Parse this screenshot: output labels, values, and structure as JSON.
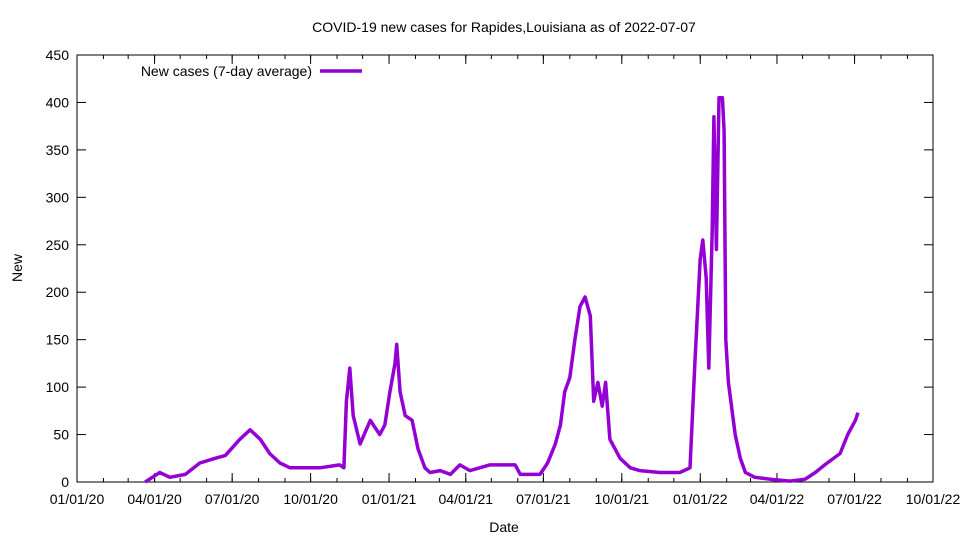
{
  "chart_data": {
    "type": "line",
    "title": "COVID-19 new cases for Rapides,Louisiana as of 2022-07-07",
    "xlabel": "Date",
    "ylabel": "New",
    "ylim": [
      0,
      450
    ],
    "yticks": [
      0,
      50,
      100,
      150,
      200,
      250,
      300,
      350,
      400,
      450
    ],
    "xlim": [
      "2020-01-01",
      "2022-10-01"
    ],
    "xticks": [
      {
        "date": "2020-01-01",
        "label": "01/01/20"
      },
      {
        "date": "2020-04-01",
        "label": "04/01/20"
      },
      {
        "date": "2020-07-01",
        "label": "07/01/20"
      },
      {
        "date": "2020-10-01",
        "label": "10/01/20"
      },
      {
        "date": "2021-01-01",
        "label": "01/01/21"
      },
      {
        "date": "2021-04-01",
        "label": "04/01/21"
      },
      {
        "date": "2021-07-01",
        "label": "07/01/21"
      },
      {
        "date": "2021-10-01",
        "label": "10/01/21"
      },
      {
        "date": "2022-01-01",
        "label": "01/01/22"
      },
      {
        "date": "2022-04-01",
        "label": "04/01/22"
      },
      {
        "date": "2022-07-01",
        "label": "07/01/22"
      },
      {
        "date": "2022-10-01",
        "label": "10/01/22"
      }
    ],
    "grid": false,
    "legend_position": "top-left",
    "series": [
      {
        "name": "New cases (7-day average)",
        "color": "#9400D3",
        "points": [
          [
            "2020-03-21",
            0
          ],
          [
            "2020-04-07",
            10
          ],
          [
            "2020-04-19",
            5
          ],
          [
            "2020-05-07",
            8
          ],
          [
            "2020-05-24",
            20
          ],
          [
            "2020-06-11",
            25
          ],
          [
            "2020-06-23",
            28
          ],
          [
            "2020-07-10",
            45
          ],
          [
            "2020-07-22",
            55
          ],
          [
            "2020-08-03",
            45
          ],
          [
            "2020-08-14",
            30
          ],
          [
            "2020-08-26",
            20
          ],
          [
            "2020-09-07",
            15
          ],
          [
            "2020-09-19",
            15
          ],
          [
            "2020-10-12",
            15
          ],
          [
            "2020-11-04",
            18
          ],
          [
            "2020-11-09",
            15
          ],
          [
            "2020-11-12",
            85
          ],
          [
            "2020-11-16",
            120
          ],
          [
            "2020-11-20",
            70
          ],
          [
            "2020-11-28",
            40
          ],
          [
            "2020-12-10",
            65
          ],
          [
            "2020-12-21",
            50
          ],
          [
            "2020-12-27",
            60
          ],
          [
            "2021-01-02",
            95
          ],
          [
            "2021-01-08",
            125
          ],
          [
            "2021-01-10",
            145
          ],
          [
            "2021-01-14",
            95
          ],
          [
            "2021-01-20",
            70
          ],
          [
            "2021-01-28",
            65
          ],
          [
            "2021-02-04",
            35
          ],
          [
            "2021-02-12",
            15
          ],
          [
            "2021-02-18",
            10
          ],
          [
            "2021-03-02",
            12
          ],
          [
            "2021-03-14",
            8
          ],
          [
            "2021-03-25",
            18
          ],
          [
            "2021-04-06",
            12
          ],
          [
            "2021-04-29",
            18
          ],
          [
            "2021-05-29",
            18
          ],
          [
            "2021-06-04",
            8
          ],
          [
            "2021-06-27",
            8
          ],
          [
            "2021-07-06",
            20
          ],
          [
            "2021-07-15",
            40
          ],
          [
            "2021-07-21",
            60
          ],
          [
            "2021-07-26",
            95
          ],
          [
            "2021-08-01",
            110
          ],
          [
            "2021-08-07",
            150
          ],
          [
            "2021-08-13",
            185
          ],
          [
            "2021-08-19",
            195
          ],
          [
            "2021-08-25",
            175
          ],
          [
            "2021-08-29",
            85
          ],
          [
            "2021-09-03",
            105
          ],
          [
            "2021-09-08",
            80
          ],
          [
            "2021-09-12",
            105
          ],
          [
            "2021-09-17",
            45
          ],
          [
            "2021-09-23",
            35
          ],
          [
            "2021-09-29",
            25
          ],
          [
            "2021-10-11",
            15
          ],
          [
            "2021-10-22",
            12
          ],
          [
            "2021-11-15",
            10
          ],
          [
            "2021-12-08",
            10
          ],
          [
            "2021-12-20",
            15
          ],
          [
            "2021-12-26",
            130
          ],
          [
            "2022-01-01",
            235
          ],
          [
            "2022-01-04",
            255
          ],
          [
            "2022-01-08",
            215
          ],
          [
            "2022-01-11",
            120
          ],
          [
            "2022-01-15",
            265
          ],
          [
            "2022-01-17",
            385
          ],
          [
            "2022-01-20",
            245
          ],
          [
            "2022-01-23",
            405
          ],
          [
            "2022-01-27",
            405
          ],
          [
            "2022-01-29",
            370
          ],
          [
            "2022-01-31",
            150
          ],
          [
            "2022-02-03",
            105
          ],
          [
            "2022-02-11",
            50
          ],
          [
            "2022-02-17",
            25
          ],
          [
            "2022-02-23",
            10
          ],
          [
            "2022-03-06",
            5
          ],
          [
            "2022-03-24",
            3
          ],
          [
            "2022-04-16",
            1
          ],
          [
            "2022-05-04",
            3
          ],
          [
            "2022-05-16",
            10
          ],
          [
            "2022-05-27",
            18
          ],
          [
            "2022-06-14",
            30
          ],
          [
            "2022-06-23",
            50
          ],
          [
            "2022-07-02",
            65
          ],
          [
            "2022-07-05",
            73
          ]
        ]
      }
    ]
  }
}
